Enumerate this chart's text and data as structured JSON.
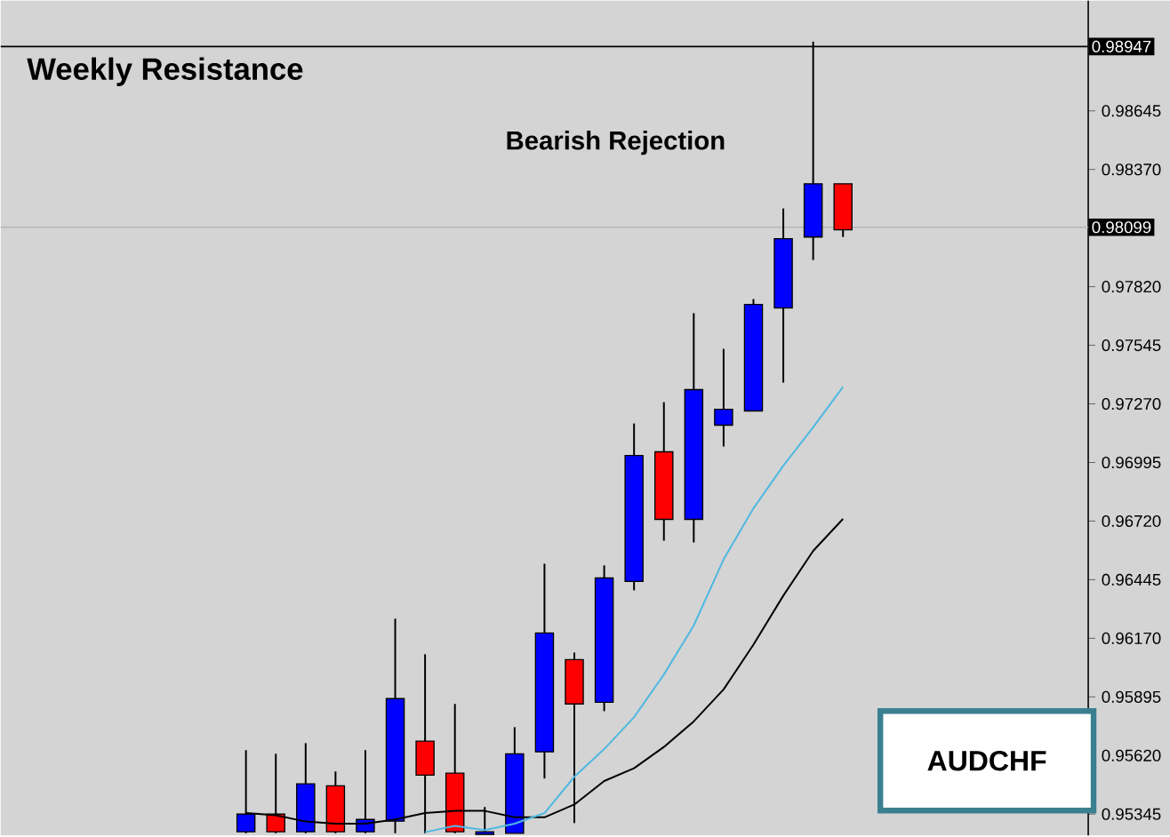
{
  "chart_data": {
    "type": "candlestick",
    "categories": [
      null,
      null,
      null,
      null,
      null,
      null,
      null,
      null,
      null,
      null,
      null,
      null,
      null,
      null,
      null,
      null,
      null,
      null,
      null,
      null,
      null
    ],
    "ohlc": [
      [
        0.95262,
        0.95645,
        0.95255,
        0.95345
      ],
      [
        0.95345,
        0.95628,
        0.95255,
        0.95262
      ],
      [
        0.95262,
        0.95678,
        0.95255,
        0.95487
      ],
      [
        0.95478,
        0.95545,
        0.95255,
        0.95262
      ],
      [
        0.95262,
        0.95645,
        0.95255,
        0.9532
      ],
      [
        0.95312,
        0.96262,
        0.95255,
        0.95887
      ],
      [
        0.95687,
        0.96095,
        0.95255,
        0.95528
      ],
      [
        0.95537,
        0.95862,
        0.95255,
        0.95262
      ],
      [
        0.9525,
        0.95378,
        0.9525,
        0.95262
      ],
      [
        0.95255,
        0.95753,
        0.95255,
        0.95628
      ],
      [
        0.95637,
        0.9652,
        0.95512,
        0.96195
      ],
      [
        0.9607,
        0.96103,
        0.95303,
        0.95862
      ],
      [
        0.9587,
        0.96512,
        0.95828,
        0.96453
      ],
      [
        0.96437,
        0.97178,
        0.96395,
        0.97028
      ],
      [
        0.97045,
        0.97278,
        0.96628,
        0.96728
      ],
      [
        0.96728,
        0.97695,
        0.9662,
        0.97337
      ],
      [
        0.9717,
        0.97528,
        0.9707,
        0.97245
      ],
      [
        0.97237,
        0.97762,
        0.97237,
        0.97737
      ],
      [
        0.9772,
        0.98187,
        0.9737,
        0.98045
      ],
      [
        0.98053,
        0.9897,
        0.97945,
        0.98303
      ],
      [
        0.98303,
        0.98303,
        0.98053,
        0.98087
      ]
    ],
    "colors": [
      "#0000ff",
      "#ff0000",
      "#0000ff",
      "#ff0000",
      "#0000ff",
      "#0000ff",
      "#ff0000",
      "#ff0000",
      "#0000ff",
      "#0000ff",
      "#0000ff",
      "#ff0000",
      "#0000ff",
      "#0000ff",
      "#ff0000",
      "#0000ff",
      "#0000ff",
      "#0000ff",
      "#0000ff",
      "#0000ff",
      "#ff0000"
    ],
    "series": [
      {
        "type": "line",
        "color": "#000000",
        "values": [
          0.9535,
          0.9534,
          0.9531,
          0.953,
          0.953,
          0.9532,
          0.9535,
          0.9536,
          0.9536,
          0.9533,
          0.9533,
          0.9539,
          0.955,
          0.9556,
          0.9566,
          0.9578,
          0.9593,
          0.9614,
          0.9637,
          0.9658,
          0.9673
        ]
      },
      {
        "type": "line",
        "color": "#4fb8e0",
        "values": [
          null,
          null,
          null,
          null,
          null,
          null,
          0.9526,
          0.9529,
          0.9527,
          0.953,
          0.9535,
          0.9552,
          0.9565,
          0.958,
          0.96,
          0.9623,
          0.9654,
          0.9678,
          0.9698,
          0.9716,
          0.9735
        ]
      }
    ],
    "ylim": [
      0.95245,
      0.99162
    ],
    "yticks": [
      {
        "value": 0.95345,
        "label": "0.95345"
      },
      {
        "value": 0.9562,
        "label": "0.95620"
      },
      {
        "value": 0.95895,
        "label": "0.95895"
      },
      {
        "value": 0.9617,
        "label": "0.96170"
      },
      {
        "value": 0.96445,
        "label": "0.96445"
      },
      {
        "value": 0.9672,
        "label": "0.96720"
      },
      {
        "value": 0.96995,
        "label": "0.96995"
      },
      {
        "value": 0.9727,
        "label": "0.97270"
      },
      {
        "value": 0.97545,
        "label": "0.97545"
      },
      {
        "value": 0.9782,
        "label": "0.97820"
      },
      {
        "value": 0.9837,
        "label": "0.98370"
      },
      {
        "value": 0.98645,
        "label": "0.98645"
      }
    ],
    "ref_lines": [
      {
        "axis": "y",
        "value": 0.98947,
        "label": "0.98947",
        "color": "#000000"
      },
      {
        "axis": "y",
        "value": 0.98099,
        "label": "0.98099",
        "color": "#b4b4b4"
      }
    ],
    "annotations": [
      "Weekly Resistance",
      "Bearish Rejection",
      "AUDCHF"
    ]
  }
}
